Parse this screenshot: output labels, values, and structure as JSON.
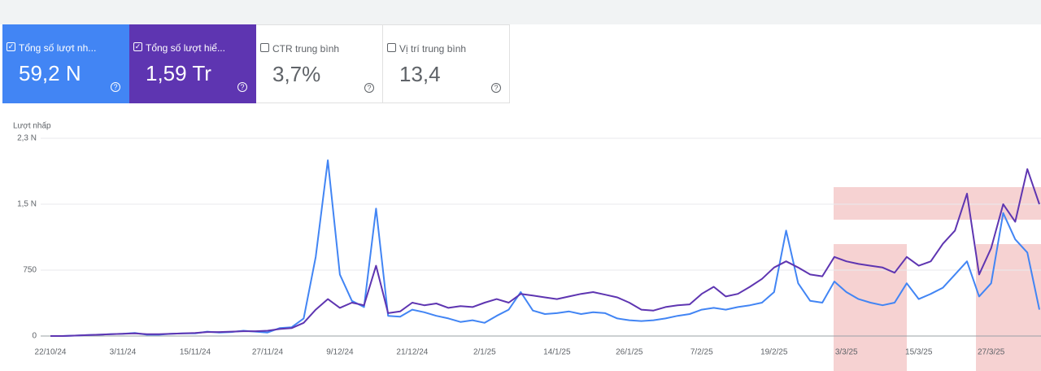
{
  "cards": [
    {
      "label": "Tổng số lượt nh...",
      "value": "59,2 N",
      "checked": true,
      "color": "#4285f4"
    },
    {
      "label": "Tổng số lượt hiể...",
      "value": "1,59 Tr",
      "checked": true,
      "color": "#5e35b1"
    },
    {
      "label": "CTR trung bình",
      "value": "3,7%",
      "checked": false,
      "color": "#ffffff"
    },
    {
      "label": "Vị trí trung bình",
      "value": "13,4",
      "checked": false,
      "color": "#ffffff"
    }
  ],
  "chart_data": {
    "type": "line",
    "y_label": "Lượt nhấp",
    "categories": [
      "22/10/24",
      null,
      null,
      null,
      null,
      null,
      "3/11/24",
      null,
      null,
      null,
      null,
      null,
      "15/11/24",
      null,
      null,
      null,
      null,
      null,
      "27/11/24",
      null,
      null,
      null,
      null,
      null,
      "9/12/24",
      null,
      null,
      null,
      null,
      null,
      "21/12/24",
      null,
      null,
      null,
      null,
      null,
      "2/1/25",
      null,
      null,
      null,
      null,
      null,
      "14/1/25",
      null,
      null,
      null,
      null,
      null,
      "26/1/25",
      null,
      null,
      null,
      null,
      null,
      "7/2/25",
      null,
      null,
      null,
      null,
      null,
      "19/2/25",
      null,
      null,
      null,
      null,
      null,
      "3/3/25",
      null,
      null,
      null,
      null,
      null,
      "15/3/25",
      null,
      null,
      null,
      null,
      null,
      "27/3/25",
      null,
      null,
      null,
      null
    ],
    "series": [
      {
        "name": "Tổng số lượt nhấp",
        "color": "#4285f4",
        "values": [
          0,
          0,
          5,
          10,
          15,
          20,
          25,
          35,
          15,
          15,
          25,
          30,
          30,
          50,
          40,
          45,
          60,
          50,
          40,
          90,
          100,
          200,
          900,
          2000,
          700,
          400,
          330,
          1450,
          230,
          220,
          300,
          270,
          230,
          200,
          160,
          180,
          150,
          230,
          300,
          500,
          290,
          250,
          260,
          280,
          250,
          270,
          260,
          200,
          180,
          170,
          180,
          200,
          230,
          250,
          300,
          320,
          300,
          330,
          350,
          380,
          500,
          1200,
          600,
          400,
          380,
          620,
          500,
          420,
          380,
          350,
          380,
          600,
          420,
          480,
          550,
          700,
          850,
          450,
          600,
          1400,
          1100,
          950,
          300
        ]
      },
      {
        "name": "Tổng số lượt hiển thị",
        "color": "#5e35b1",
        "values": [
          0,
          0,
          5,
          10,
          15,
          20,
          25,
          30,
          20,
          20,
          25,
          30,
          35,
          45,
          45,
          50,
          55,
          55,
          60,
          80,
          90,
          150,
          300,
          420,
          320,
          380,
          350,
          800,
          260,
          280,
          380,
          350,
          370,
          320,
          340,
          330,
          380,
          420,
          380,
          480,
          460,
          440,
          420,
          450,
          480,
          500,
          470,
          440,
          380,
          300,
          290,
          330,
          350,
          360,
          480,
          560,
          450,
          480,
          560,
          650,
          780,
          850,
          780,
          700,
          680,
          900,
          850,
          820,
          800,
          780,
          720,
          900,
          800,
          850,
          1050,
          1200,
          1620,
          700,
          1000,
          1500,
          1300,
          1900,
          1500
        ]
      }
    ],
    "ylim": [
      0,
      2250
    ],
    "yticks": [
      0,
      750,
      {
        "value": 1500,
        "label": "1,5 N"
      },
      {
        "value": 2250,
        "label": "2,3 N"
      }
    ],
    "grid": true
  }
}
